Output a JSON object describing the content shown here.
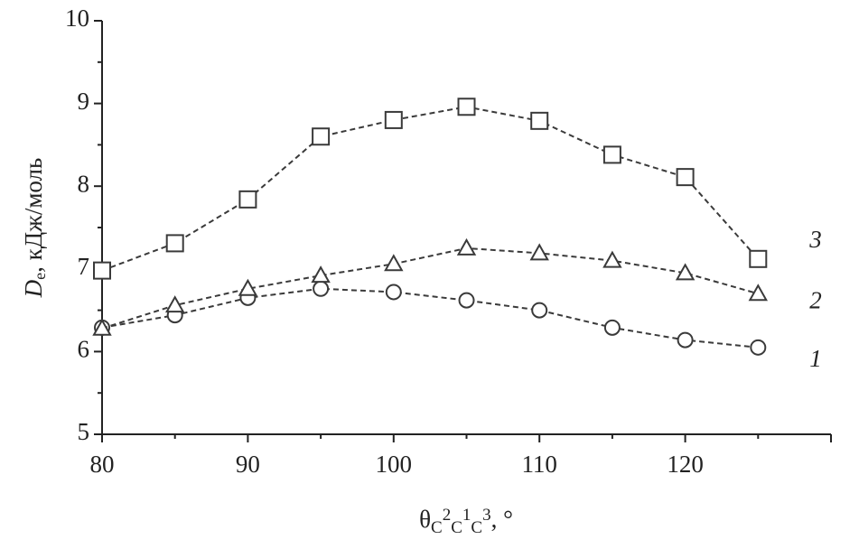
{
  "chart_data": {
    "type": "line",
    "x_label": [
      "θ",
      "C",
      "2",
      "C",
      "1",
      "C",
      "3",
      ", °"
    ],
    "y_label": [
      "D",
      "e",
      ", кДж/моль"
    ],
    "x": [
      80,
      85,
      90,
      95,
      100,
      105,
      110,
      115,
      120,
      125
    ],
    "series": [
      {
        "name": "1",
        "marker": "circle",
        "color": "#3a3a3a",
        "values": [
          6.29,
          6.44,
          6.65,
          6.76,
          6.72,
          6.62,
          6.5,
          6.29,
          6.14,
          6.05
        ]
      },
      {
        "name": "2",
        "marker": "triangle",
        "color": "#3a3a3a",
        "values": [
          6.28,
          6.56,
          6.76,
          6.92,
          7.06,
          7.25,
          7.19,
          7.1,
          6.95,
          6.7
        ]
      },
      {
        "name": "3",
        "marker": "square",
        "color": "#3a3a3a",
        "values": [
          6.98,
          7.31,
          7.84,
          8.6,
          8.8,
          8.96,
          8.79,
          8.38,
          8.11,
          7.12
        ]
      }
    ],
    "xlim": [
      80,
      130
    ],
    "xticks": [
      80,
      90,
      100,
      110,
      120
    ],
    "ylim": [
      5,
      10
    ],
    "yticks": [
      5,
      6,
      7,
      8,
      9,
      10
    ],
    "grid": false
  }
}
